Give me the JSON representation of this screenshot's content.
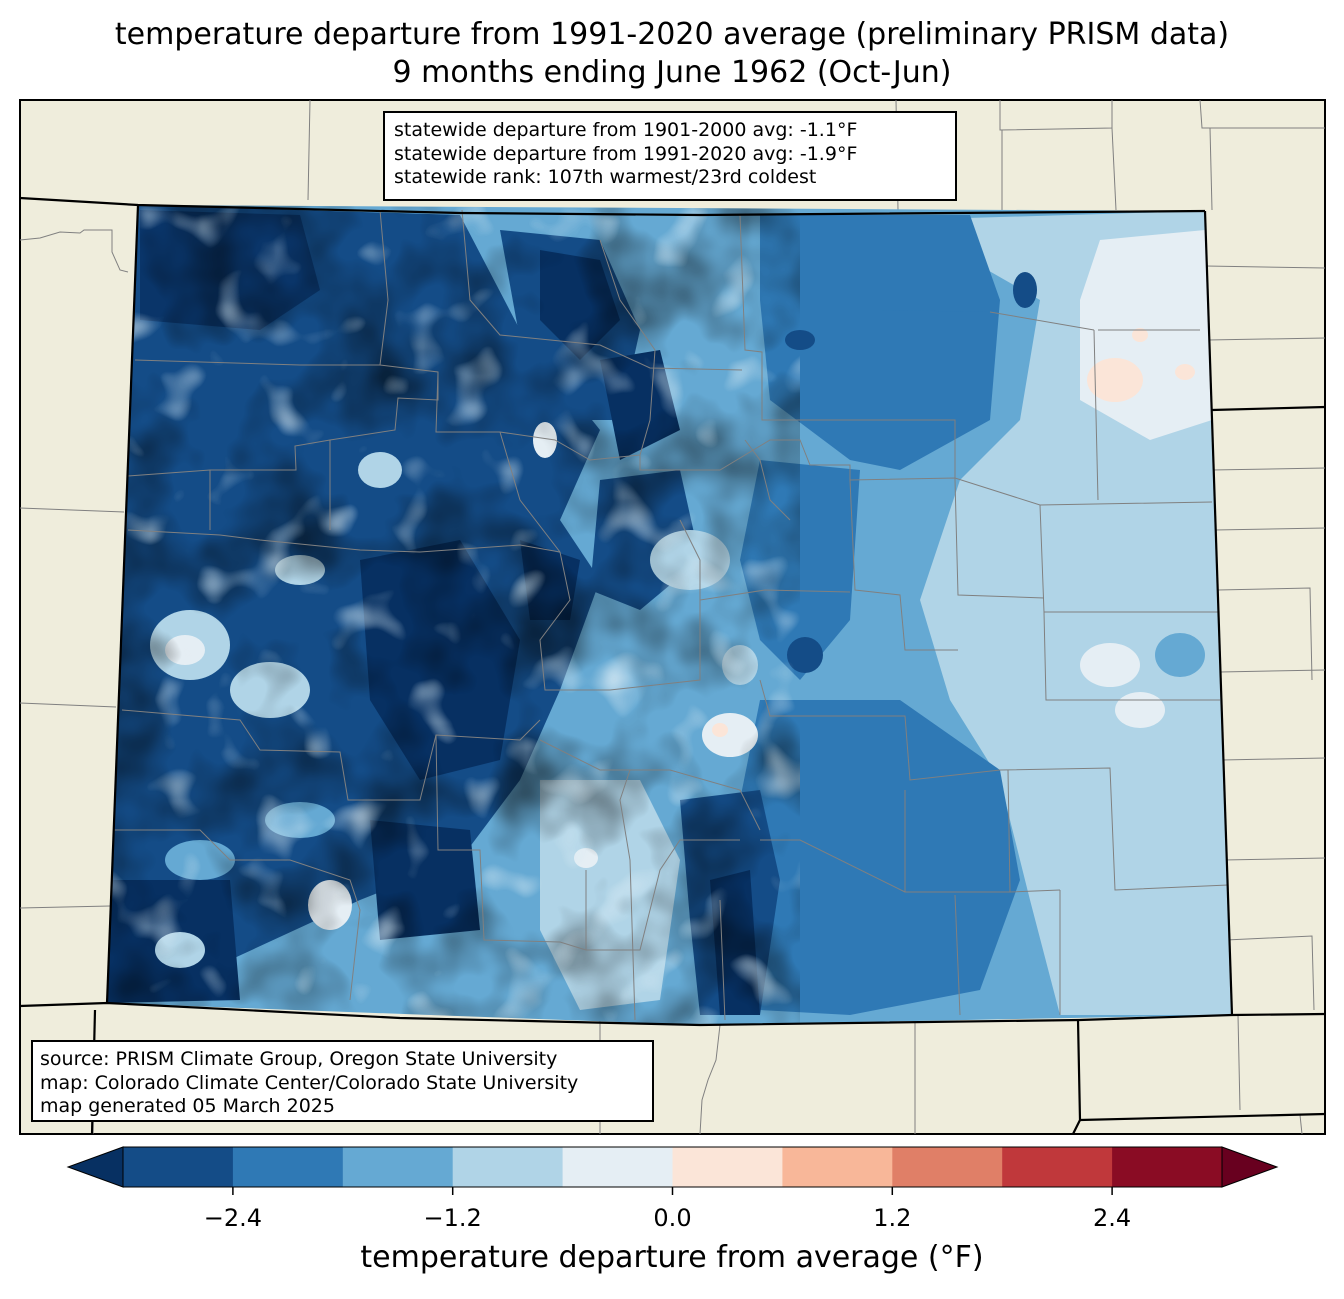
{
  "title": {
    "line1": "temperature departure from 1991-2020 average (preliminary PRISM data)",
    "line2": "9 months ending June 1962 (Oct-Jun)"
  },
  "stats": {
    "line1": "statewide departure from 1901-2000 avg: -1.1°F",
    "line2": "statewide departure from 1991-2020 avg: -1.9°F",
    "line3": "statewide rank: 107th warmest/23rd coldest"
  },
  "source": {
    "line1": "source: PRISM Climate Group, Oregon State University",
    "line2": "map: Colorado Climate Center/Colorado State University",
    "line3": "map generated 05 March 2025"
  },
  "colorbar": {
    "label": "temperature departure from average (°F)",
    "ticks": [
      "−2.4",
      "−1.2",
      "0.0",
      "1.2",
      "2.4"
    ],
    "tick_values": [
      -2.4,
      -1.2,
      0.0,
      1.2,
      2.4
    ],
    "range": [
      -3.0,
      3.0
    ],
    "bins": [
      {
        "from": -3.0,
        "to": -2.4,
        "color": "#144c87"
      },
      {
        "from": -2.4,
        "to": -1.8,
        "color": "#2f79b5"
      },
      {
        "from": -1.8,
        "to": -1.2,
        "color": "#65a9d3"
      },
      {
        "from": -1.2,
        "to": -0.6,
        "color": "#b0d4e7"
      },
      {
        "from": -0.6,
        "to": 0.0,
        "color": "#e5eef4"
      },
      {
        "from": 0.0,
        "to": 0.6,
        "color": "#fbe5d8"
      },
      {
        "from": 0.6,
        "to": 1.2,
        "color": "#f8b799"
      },
      {
        "from": 1.2,
        "to": 1.8,
        "color": "#e07f67"
      },
      {
        "from": 1.8,
        "to": 2.4,
        "color": "#c0383b"
      },
      {
        "from": 2.4,
        "to": 3.0,
        "color": "#8a0c24"
      }
    ],
    "under_color": "#073062",
    "over_color": "#68001f"
  },
  "colors": {
    "land": "#efeddc",
    "county_lines": "#808080",
    "state_lines": "#000000"
  }
}
